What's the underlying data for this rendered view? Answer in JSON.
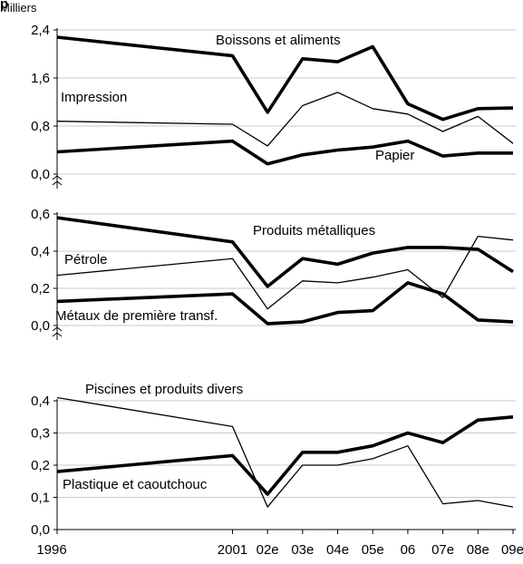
{
  "chart_data": {
    "type": "line",
    "title": "p",
    "x_labels": [
      "1996",
      "2001",
      "02e",
      "03e",
      "04e",
      "05e",
      "06",
      "07e",
      "08e",
      "09e"
    ],
    "x_years": [
      1996,
      2001,
      2002,
      2003,
      2004,
      2005,
      2006,
      2007,
      2008,
      2009
    ],
    "grid": "horizontal",
    "panels": [
      {
        "unit_label": "Milliers",
        "ylim": [
          0,
          2.4
        ],
        "yticks": [
          0.0,
          0.8,
          1.6,
          2.4
        ],
        "ytick_labels": [
          "0,0",
          "0,8",
          "1,6",
          "2,4"
        ],
        "axis_break": true,
        "series": [
          {
            "name": "Boissons et aliments",
            "style": "thick",
            "values": [
              2.28,
              1.97,
              1.03,
              1.92,
              1.87,
              2.12,
              1.17,
              0.91,
              1.09,
              1.1
            ]
          },
          {
            "name": "Impression",
            "style": "thin",
            "values": [
              0.88,
              0.83,
              0.47,
              1.14,
              1.36,
              1.09,
              1.0,
              0.71,
              0.96,
              0.51
            ]
          },
          {
            "name": "Papier",
            "style": "thick",
            "values": [
              0.37,
              0.55,
              0.17,
              0.32,
              0.4,
              0.45,
              0.55,
              0.3,
              0.35,
              0.35
            ]
          }
        ]
      },
      {
        "unit_label": "",
        "ylim": [
          0,
          0.6
        ],
        "yticks": [
          0.0,
          0.2,
          0.4,
          0.6
        ],
        "ytick_labels": [
          "0,0",
          "0,2",
          "0,4",
          "0,6"
        ],
        "axis_break": true,
        "series": [
          {
            "name": "Produits métalliques",
            "style": "thick",
            "values": [
              0.58,
              0.45,
              0.21,
              0.36,
              0.33,
              0.39,
              0.42,
              0.42,
              0.41,
              0.29
            ]
          },
          {
            "name": "Pétrole",
            "style": "thin",
            "values": [
              0.27,
              0.36,
              0.09,
              0.24,
              0.23,
              0.26,
              0.3,
              0.15,
              0.48,
              0.46
            ]
          },
          {
            "name": "Métaux de première transf.",
            "style": "thick",
            "values": [
              0.13,
              0.17,
              0.01,
              0.02,
              0.07,
              0.08,
              0.23,
              0.17,
              0.03,
              0.02
            ]
          }
        ]
      },
      {
        "unit_label": "",
        "ylim": [
          0,
          0.4
        ],
        "yticks": [
          0.0,
          0.1,
          0.2,
          0.3,
          0.4
        ],
        "ytick_labels": [
          "0,0",
          "0,1",
          "0,2",
          "0,3",
          "0,4"
        ],
        "axis_break": false,
        "series": [
          {
            "name": "Piscines et produits divers",
            "style": "thin",
            "values": [
              0.41,
              0.32,
              0.07,
              0.2,
              0.2,
              0.22,
              0.26,
              0.08,
              0.09,
              0.07
            ]
          },
          {
            "name": "Plastique et caoutchouc",
            "style": "thick",
            "values": [
              0.18,
              0.23,
              0.11,
              0.24,
              0.24,
              0.26,
              0.3,
              0.27,
              0.34,
              0.35
            ]
          }
        ]
      }
    ]
  },
  "colors": {
    "line": "#000000",
    "grid": "#c8c8c8"
  }
}
